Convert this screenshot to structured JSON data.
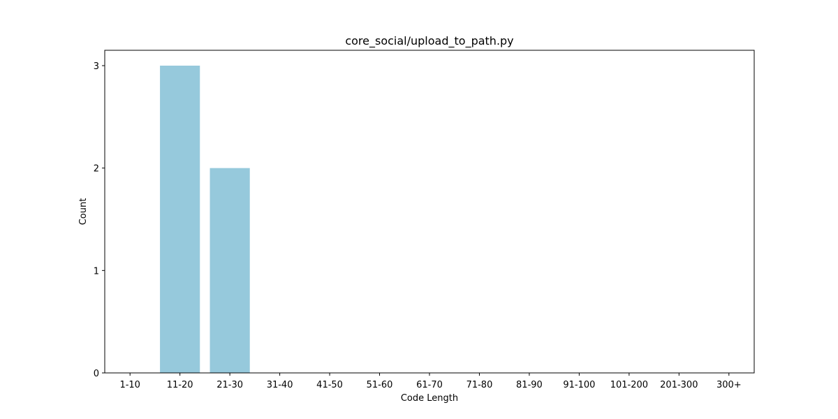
{
  "chart_data": {
    "type": "bar",
    "title": "core_social/upload_to_path.py",
    "xlabel": "Code Length",
    "ylabel": "Count",
    "categories": [
      "1-10",
      "11-20",
      "21-30",
      "31-40",
      "41-50",
      "51-60",
      "61-70",
      "71-80",
      "81-90",
      "91-100",
      "101-200",
      "201-300",
      "300+"
    ],
    "values": [
      0,
      3,
      2,
      0,
      0,
      0,
      0,
      0,
      0,
      0,
      0,
      0,
      0
    ],
    "yticks": [
      0,
      1,
      2,
      3
    ],
    "ylim": [
      0,
      3.15
    ],
    "grid": false,
    "legend": "none",
    "bar_color": "#96c9dc"
  }
}
